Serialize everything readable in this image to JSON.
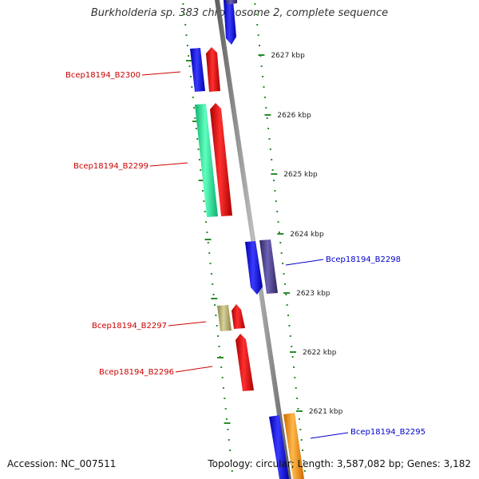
{
  "title": "Burkholderia sp. 383 chromosome 2, complete sequence",
  "footer": {
    "accession": "Accession: NC_007511",
    "summary": "Topology: circular; Length: 3,587,082 bp; Genes: 3,182"
  },
  "scale_ticks": [
    {
      "label": "2627 kbp"
    },
    {
      "label": "2626 kbp"
    },
    {
      "label": "2625 kbp"
    },
    {
      "label": "2624 kbp"
    },
    {
      "label": "2623 kbp"
    },
    {
      "label": "2622 kbp"
    },
    {
      "label": "2621 kbp"
    }
  ],
  "gene_labels": [
    {
      "text": "Bcep18194_B2300",
      "strand": "left",
      "color": "#cc0000"
    },
    {
      "text": "Bcep18194_B2299",
      "strand": "left",
      "color": "#cc0000"
    },
    {
      "text": "Bcep18194_B2298",
      "strand": "right",
      "color": "#0000cc"
    },
    {
      "text": "Bcep18194_B2297",
      "strand": "left",
      "color": "#cc0000"
    },
    {
      "text": "Bcep18194_B2296",
      "strand": "left",
      "color": "#cc0000"
    },
    {
      "text": "Bcep18194_B2295",
      "strand": "right",
      "color": "#0000cc"
    }
  ],
  "colors": {
    "backbone": "#8a8a8a",
    "dotted_track": "#2e8b2e",
    "blue_feature": "#1a1aee",
    "red_feature": "#ee1111",
    "green_feature": "#22ee99",
    "purple_feature": "#4a3f8c",
    "khaki_feature": "#b5ad6a",
    "orange_feature": "#ff9900",
    "lavender_feature": "#c8c8f0"
  }
}
